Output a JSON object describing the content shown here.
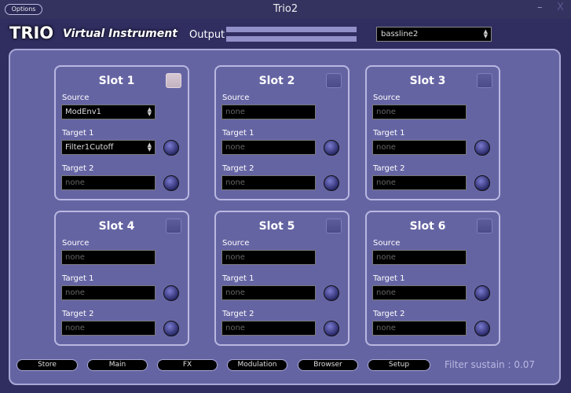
{
  "window": {
    "title": "Trio2",
    "options_label": "Options",
    "minimize": "–",
    "close": "X"
  },
  "header": {
    "logo": "TRIO",
    "subtitle": "Virtual Instrument",
    "output_label": "Output",
    "output_levels": [
      1,
      1
    ],
    "preset": "bassline2"
  },
  "slots": [
    {
      "title": "Slot 1",
      "enabled": true,
      "source_label": "Source",
      "source": "ModEnv1",
      "target1_label": "Target 1",
      "target1": "Filter1Cutoff",
      "target2_label": "Target 2",
      "target2": "none"
    },
    {
      "title": "Slot 2",
      "enabled": false,
      "source_label": "Source",
      "source": "none",
      "target1_label": "Target 1",
      "target1": "none",
      "target2_label": "Target 2",
      "target2": "none"
    },
    {
      "title": "Slot 3",
      "enabled": false,
      "source_label": "Source",
      "source": "none",
      "target1_label": "Target 1",
      "target1": "none",
      "target2_label": "Target 2",
      "target2": "none"
    },
    {
      "title": "Slot 4",
      "enabled": false,
      "source_label": "Source",
      "source": "none",
      "target1_label": "Target 1",
      "target1": "none",
      "target2_label": "Target 2",
      "target2": "none"
    },
    {
      "title": "Slot 5",
      "enabled": false,
      "source_label": "Source",
      "source": "none",
      "target1_label": "Target 1",
      "target1": "none",
      "target2_label": "Target 2",
      "target2": "none"
    },
    {
      "title": "Slot 6",
      "enabled": false,
      "source_label": "Source",
      "source": "none",
      "target1_label": "Target 1",
      "target1": "none",
      "target2_label": "Target 2",
      "target2": "none"
    }
  ],
  "nav": [
    "Store",
    "Main",
    "FX",
    "Modulation",
    "Browser",
    "Setup"
  ],
  "status": "Filter sustain : 0.07"
}
